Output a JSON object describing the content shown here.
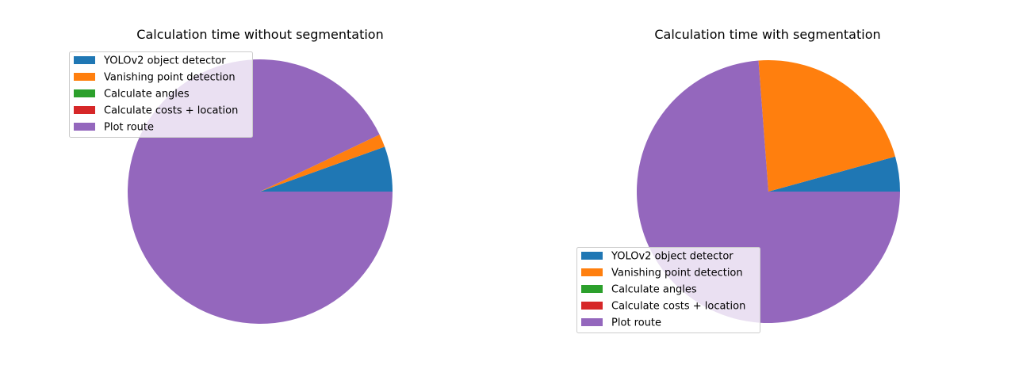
{
  "chart_data": [
    {
      "type": "pie",
      "title": "Calculation time without segmentation",
      "categories": [
        "YOLOv2 object detector",
        "Vanishing point detection",
        "Calculate angles",
        "Calculate costs + location",
        "Plot route"
      ],
      "values": [
        5.5,
        1.6,
        0.0,
        0.0,
        92.9
      ],
      "colors": [
        "#1f77b4",
        "#ff7f0e",
        "#2ca02c",
        "#d62728",
        "#9467bd"
      ],
      "start_angle": 0,
      "direction": "counterclockwise",
      "legend_loc": "upper left"
    },
    {
      "type": "pie",
      "title": "Calculation time with segmentation",
      "categories": [
        "YOLOv2 object detector",
        "Vanishing point detection",
        "Calculate angles",
        "Calculate costs + location",
        "Plot route"
      ],
      "values": [
        4.3,
        21.9,
        0.0,
        0.0,
        73.8
      ],
      "colors": [
        "#1f77b4",
        "#ff7f0e",
        "#2ca02c",
        "#d62728",
        "#9467bd"
      ],
      "start_angle": 0,
      "direction": "counterclockwise",
      "legend_loc": "lower left"
    }
  ]
}
